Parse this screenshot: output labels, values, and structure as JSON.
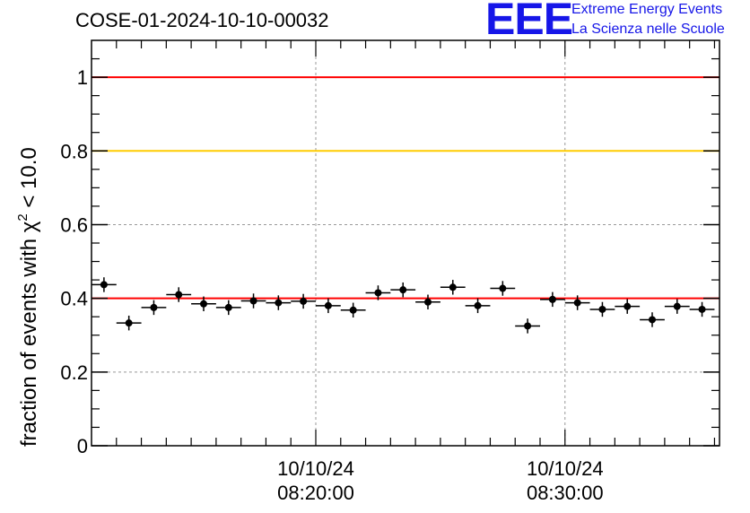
{
  "header": {
    "title": "COSE-01-2024-10-10-00032",
    "logo_text": "EEE",
    "logo_line1": "Extreme Energy Events",
    "logo_line2": "La Scienza nelle Scuole"
  },
  "colors": {
    "data": "#000000",
    "reference_red": "#ff0000",
    "reference_yellow": "#ffcc00",
    "grid": "#999999",
    "logo": "#1616e8"
  },
  "chart_data": {
    "type": "scatter",
    "title": "COSE-01-2024-10-10-00032",
    "ylabel": "fraction of events with χ² < 10.0",
    "ylabel_parts": {
      "pre": "fraction of events with ",
      "chi": "χ",
      "exp": "2",
      "post": " < 10.0"
    },
    "xlabel": "",
    "x_unit": "minutes after 10/10/24 08:10:00",
    "xlim": [
      0,
      25.2
    ],
    "ylim": [
      0,
      1.1
    ],
    "yticks": [
      0,
      0.2,
      0.4,
      0.6,
      0.8,
      1
    ],
    "ytick_labels": [
      "0",
      "0.2",
      "0.4",
      "0.6",
      "0.8",
      "1"
    ],
    "xticks": [
      {
        "x": 9,
        "date": "10/10/24",
        "time": "08:20:00"
      },
      {
        "x": 19,
        "date": "10/10/24",
        "time": "08:30:00"
      }
    ],
    "grid": true,
    "x_bin_halfwidth": 0.5,
    "series": [
      {
        "x": [
          0.5,
          1.5,
          2.5,
          3.5,
          4.5,
          5.5,
          6.5,
          7.5,
          8.5,
          9.5,
          10.5,
          11.5,
          12.5,
          13.5,
          14.5,
          15.5,
          16.5,
          17.5,
          18.5,
          19.5,
          20.5,
          21.5,
          22.5,
          23.5,
          24.5
        ],
        "y": [
          0.437,
          0.333,
          0.375,
          0.41,
          0.385,
          0.375,
          0.393,
          0.388,
          0.392,
          0.38,
          0.368,
          0.415,
          0.423,
          0.39,
          0.43,
          0.38,
          0.427,
          0.325,
          0.397,
          0.388,
          0.37,
          0.378,
          0.342,
          0.378,
          0.37
        ],
        "yerr": [
          0.02,
          0.02,
          0.02,
          0.02,
          0.02,
          0.02,
          0.02,
          0.02,
          0.02,
          0.02,
          0.02,
          0.02,
          0.02,
          0.02,
          0.02,
          0.02,
          0.02,
          0.02,
          0.02,
          0.02,
          0.02,
          0.02,
          0.02,
          0.02,
          0.02
        ]
      }
    ],
    "reference_lines": [
      {
        "y": 1.0,
        "color": "#ff0000"
      },
      {
        "y": 0.8,
        "color": "#ffcc00"
      },
      {
        "y": 0.4,
        "color": "#ff0000"
      }
    ]
  }
}
